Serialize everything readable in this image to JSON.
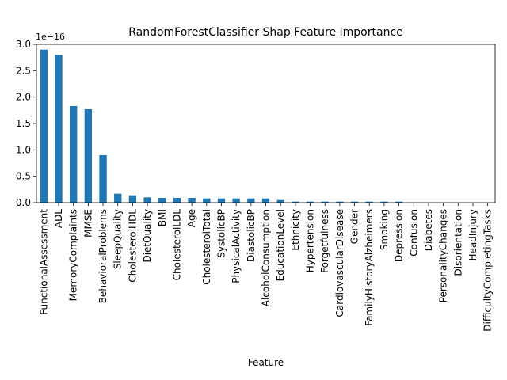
{
  "chart_data": {
    "type": "bar",
    "title": "RandomForestClassifier Shap Feature Importance",
    "xlabel": "Feature",
    "ylabel": "",
    "offset_label": "1e−16",
    "ylim": [
      0,
      3.0
    ],
    "yticks": [
      "0.0",
      "0.5",
      "1.0",
      "1.5",
      "2.0",
      "2.5",
      "3.0"
    ],
    "legend": "none",
    "grid": false,
    "bar_color": "#1f77b4",
    "categories": [
      "FunctionalAssessment",
      "ADL",
      "MemoryComplaints",
      "MMSE",
      "BehavioralProblems",
      "SleepQuality",
      "CholesterolHDL",
      "DietQuality",
      "BMI",
      "CholesterolLDL",
      "Age",
      "CholesterolTotal",
      "SystolicBP",
      "PhysicalActivity",
      "DiastolicBP",
      "AlcoholConsumption",
      "EducationLevel",
      "Ethnicity",
      "Hypertension",
      "Forgetfulness",
      "CardiovascularDisease",
      "Gender",
      "FamilyHistoryAlzheimers",
      "Smoking",
      "Depression",
      "Confusion",
      "Diabetes",
      "PersonalityChanges",
      "Disorientation",
      "HeadInjury",
      "DifficultyCompletingTasks"
    ],
    "values": [
      2.9,
      2.8,
      1.83,
      1.77,
      0.9,
      0.17,
      0.14,
      0.1,
      0.09,
      0.09,
      0.09,
      0.08,
      0.08,
      0.08,
      0.08,
      0.08,
      0.05,
      0.02,
      0.02,
      0.02,
      0.02,
      0.02,
      0.02,
      0.02,
      0.02,
      0.0,
      0.0,
      0.0,
      0.0,
      0.0,
      0.0
    ]
  }
}
